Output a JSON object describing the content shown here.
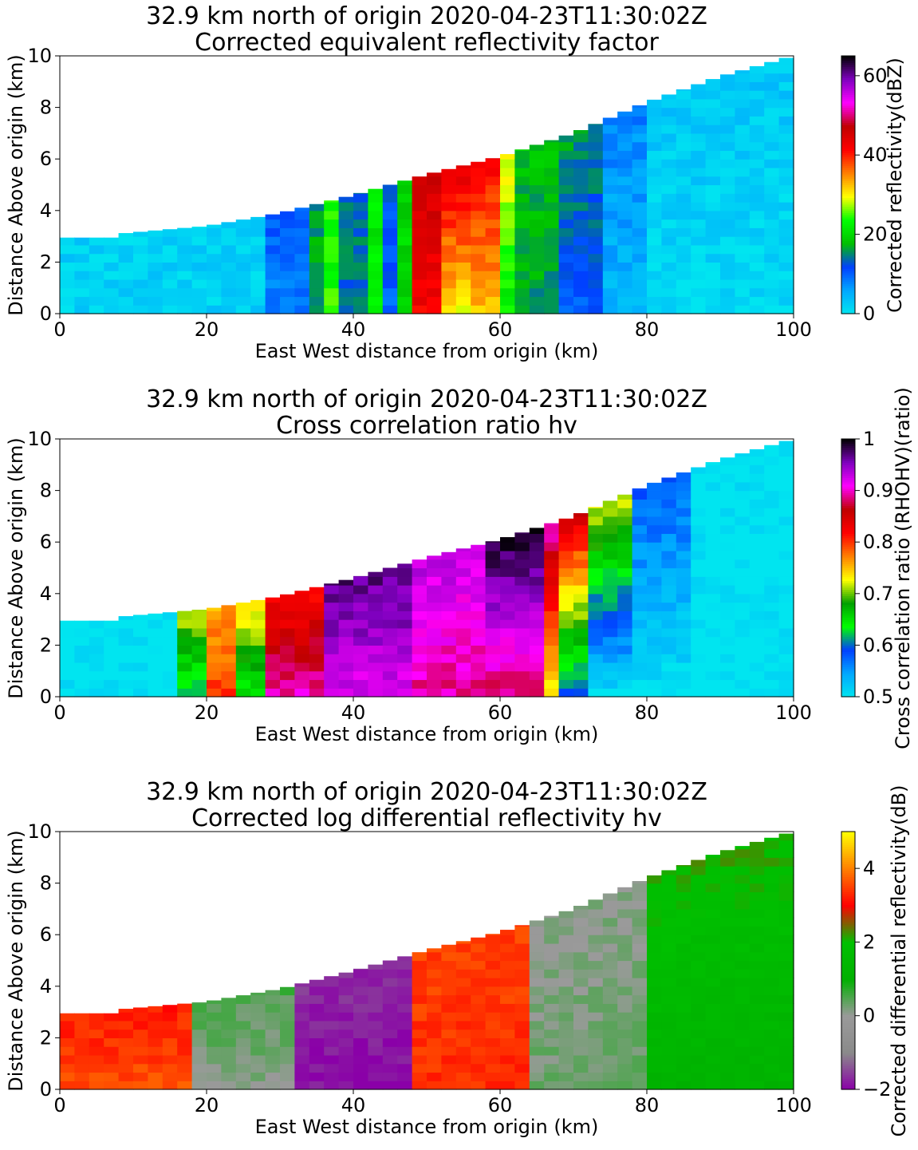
{
  "chart_data": [
    {
      "type": "heatmap",
      "field": "reflectivity",
      "title_line1": "32.9 km north of origin 2020-04-23T11:30:02Z",
      "title_line2": "Corrected equivalent reflectivity factor",
      "xlabel": "East West distance from origin (km)",
      "ylabel": "Distance Above origin (km)",
      "xlim": [
        0,
        100
      ],
      "ylim": [
        0,
        10
      ],
      "xticks": [
        0,
        20,
        40,
        60,
        80,
        100
      ],
      "yticks": [
        0,
        2,
        4,
        6,
        8,
        10
      ],
      "colorbar": {
        "label": "Corrected reflectivity(dBZ)",
        "range": [
          0,
          65
        ],
        "ticks": [
          0,
          20,
          40,
          60
        ],
        "colors": [
          "#00e5f0",
          "#00a8ff",
          "#0040ff",
          "#00c000",
          "#00ff00",
          "#ffff00",
          "#ff8000",
          "#ff0000",
          "#c00000",
          "#ff00ff",
          "#8000c0",
          "#000000"
        ]
      },
      "top_edge_km": [
        [
          0,
          2.95
        ],
        [
          8,
          2.95
        ],
        [
          8,
          3.1
        ],
        [
          20,
          3.4
        ],
        [
          30,
          3.9
        ],
        [
          40,
          4.6
        ],
        [
          50,
          5.4
        ],
        [
          60,
          6.1
        ],
        [
          70,
          7.0
        ],
        [
          80,
          8.2
        ],
        [
          90,
          9.2
        ],
        [
          100,
          10.0
        ]
      ],
      "bands": [
        {
          "x0": 0,
          "x1": 28,
          "z0": 0,
          "z1": 10,
          "v0": 2,
          "v1": 2
        },
        {
          "x0": 28,
          "x1": 34,
          "z0": 0,
          "z1": 10,
          "v0": 8,
          "v1": 10
        },
        {
          "x0": 34,
          "x1": 36,
          "z0": 0,
          "z1": 10,
          "v0": 16,
          "v1": 16
        },
        {
          "x0": 36,
          "x1": 38,
          "z0": 0,
          "z1": 10,
          "v0": 24,
          "v1": 24
        },
        {
          "x0": 38,
          "x1": 42,
          "z0": 0,
          "z1": 10,
          "v0": 14,
          "v1": 14
        },
        {
          "x0": 42,
          "x1": 44,
          "z0": 0,
          "z1": 10,
          "v0": 22,
          "v1": 22
        },
        {
          "x0": 44,
          "x1": 47,
          "z0": 0,
          "z1": 10,
          "v0": 10,
          "v1": 12
        },
        {
          "x0": 47,
          "x1": 49,
          "z0": 0,
          "z1": 10,
          "v0": 20,
          "v1": 20
        },
        {
          "x0": 49,
          "x1": 52,
          "z0": 0,
          "z1": 10,
          "v0": 42,
          "v1": 46
        },
        {
          "x0": 52,
          "x1": 57,
          "z0": 0,
          "z1": 10,
          "v0": 30,
          "v1": 44
        },
        {
          "x0": 57,
          "x1": 60,
          "z0": 0,
          "z1": 10,
          "v0": 32,
          "v1": 42
        },
        {
          "x0": 60,
          "x1": 63,
          "z0": 0,
          "z1": 10,
          "v0": 22,
          "v1": 30
        },
        {
          "x0": 63,
          "x1": 69,
          "z0": 0,
          "z1": 10,
          "v0": 16,
          "v1": 18
        },
        {
          "x0": 69,
          "x1": 74,
          "z0": 0,
          "z1": 10,
          "v0": 10,
          "v1": 16
        },
        {
          "x0": 74,
          "x1": 80,
          "z0": 0,
          "z1": 10,
          "v0": 4,
          "v1": 8
        },
        {
          "x0": 80,
          "x1": 100,
          "z0": 0,
          "z1": 10,
          "v0": 1,
          "v1": 3
        }
      ]
    },
    {
      "type": "heatmap",
      "field": "cross_correlation_ratio",
      "title_line1": "32.9 km north of origin 2020-04-23T11:30:02Z",
      "title_line2": "Cross correlation ratio hv",
      "xlabel": "East West distance from origin (km)",
      "ylabel": "Distance Above origin (km)",
      "xlim": [
        0,
        100
      ],
      "ylim": [
        0,
        10
      ],
      "xticks": [
        0,
        20,
        40,
        60,
        80,
        100
      ],
      "yticks": [
        0,
        2,
        4,
        6,
        8,
        10
      ],
      "colorbar": {
        "label": "Cross correlation ratio (RHOHV)(ratio)",
        "range": [
          0.5,
          1.0
        ],
        "ticks": [
          0.5,
          0.6,
          0.7,
          0.8,
          0.9,
          1.0
        ],
        "colors": [
          "#00e5f0",
          "#00a8ff",
          "#0040ff",
          "#00ff00",
          "#00a000",
          "#ffff00",
          "#ff8000",
          "#ff0000",
          "#c00000",
          "#ff00ff",
          "#8000c0",
          "#000000"
        ]
      },
      "top_edge_km": [
        [
          0,
          2.95
        ],
        [
          8,
          2.95
        ],
        [
          8,
          3.1
        ],
        [
          20,
          3.4
        ],
        [
          30,
          3.9
        ],
        [
          40,
          4.6
        ],
        [
          50,
          5.4
        ],
        [
          60,
          6.1
        ],
        [
          70,
          7.0
        ],
        [
          80,
          8.2
        ],
        [
          90,
          9.2
        ],
        [
          100,
          10.0
        ]
      ],
      "bands": [
        {
          "x0": 0,
          "x1": 17,
          "z0": 0,
          "z1": 10,
          "v0": 0.5,
          "v1": 0.5
        },
        {
          "x0": 17,
          "x1": 21,
          "z0": 0,
          "z1": 10,
          "v0": 0.62,
          "v1": 0.72
        },
        {
          "x0": 21,
          "x1": 25,
          "z0": 0,
          "z1": 10,
          "v0": 0.8,
          "v1": 0.76
        },
        {
          "x0": 25,
          "x1": 29,
          "z0": 0,
          "z1": 10,
          "v0": 0.64,
          "v1": 0.74
        },
        {
          "x0": 29,
          "x1": 36,
          "z0": 0,
          "z1": 10,
          "v0": 0.9,
          "v1": 0.82
        },
        {
          "x0": 36,
          "x1": 48,
          "z0": 0,
          "z1": 10,
          "v0": 0.92,
          "v1": 0.97
        },
        {
          "x0": 48,
          "x1": 58,
          "z0": 0,
          "z1": 10,
          "v0": 0.89,
          "v1": 0.93
        },
        {
          "x0": 58,
          "x1": 66,
          "z0": 0,
          "z1": 10,
          "v0": 0.88,
          "v1": 0.99
        },
        {
          "x0": 66,
          "x1": 69,
          "z0": 0,
          "z1": 10,
          "v0": 0.72,
          "v1": 0.9
        },
        {
          "x0": 69,
          "x1": 72,
          "z0": 0,
          "z1": 10,
          "v0": 0.58,
          "v1": 0.85
        },
        {
          "x0": 72,
          "x1": 78,
          "z0": 0,
          "z1": 10,
          "v0": 0.5,
          "v1": 0.72
        },
        {
          "x0": 78,
          "x1": 86,
          "z0": 0,
          "z1": 10,
          "v0": 0.5,
          "v1": 0.58
        },
        {
          "x0": 86,
          "x1": 100,
          "z0": 0,
          "z1": 10,
          "v0": 0.5,
          "v1": 0.5
        }
      ]
    },
    {
      "type": "heatmap",
      "field": "differential_reflectivity",
      "title_line1": "32.9 km north of origin 2020-04-23T11:30:02Z",
      "title_line2": "Corrected log differential reflectivity hv",
      "xlabel": "East West distance from origin (km)",
      "ylabel": "Distance Above origin (km)",
      "xlim": [
        0,
        100
      ],
      "ylim": [
        0,
        10
      ],
      "xticks": [
        0,
        20,
        40,
        60,
        80,
        100
      ],
      "yticks": [
        0,
        2,
        4,
        6,
        8,
        10
      ],
      "colorbar": {
        "label": "Corrected differential reflectivity(dB)",
        "range": [
          -2,
          5
        ],
        "ticks": [
          -2,
          0,
          2,
          4
        ],
        "colors": [
          "#8a00a8",
          "#8a8a8a",
          "#9a9a9a",
          "#00b000",
          "#00c000",
          "#ff0000",
          "#ff8000",
          "#ffff00"
        ]
      },
      "top_edge_km": [
        [
          0,
          2.95
        ],
        [
          8,
          2.95
        ],
        [
          8,
          3.1
        ],
        [
          20,
          3.4
        ],
        [
          30,
          3.9
        ],
        [
          40,
          4.6
        ],
        [
          50,
          5.4
        ],
        [
          60,
          6.1
        ],
        [
          70,
          7.0
        ],
        [
          80,
          8.2
        ],
        [
          90,
          9.2
        ],
        [
          100,
          10.0
        ]
      ],
      "bands": [
        {
          "x0": 0,
          "x1": 18,
          "z0": 0,
          "z1": 10,
          "v0": 3.6,
          "v1": 3.2
        },
        {
          "x0": 18,
          "x1": 32,
          "z0": 0,
          "z1": 10,
          "v0": 0.1,
          "v1": 0.5
        },
        {
          "x0": 32,
          "x1": 49,
          "z0": 0,
          "z1": 10,
          "v0": -1.9,
          "v1": -1.7
        },
        {
          "x0": 49,
          "x1": 64,
          "z0": 0,
          "z1": 10,
          "v0": 3.3,
          "v1": 3.5
        },
        {
          "x0": 64,
          "x1": 80,
          "z0": 0,
          "z1": 10,
          "v0": 0.3,
          "v1": 0.1
        },
        {
          "x0": 80,
          "x1": 100,
          "z0": 0,
          "z1": 10,
          "v0": 1.2,
          "v1": 2.1
        }
      ]
    }
  ]
}
